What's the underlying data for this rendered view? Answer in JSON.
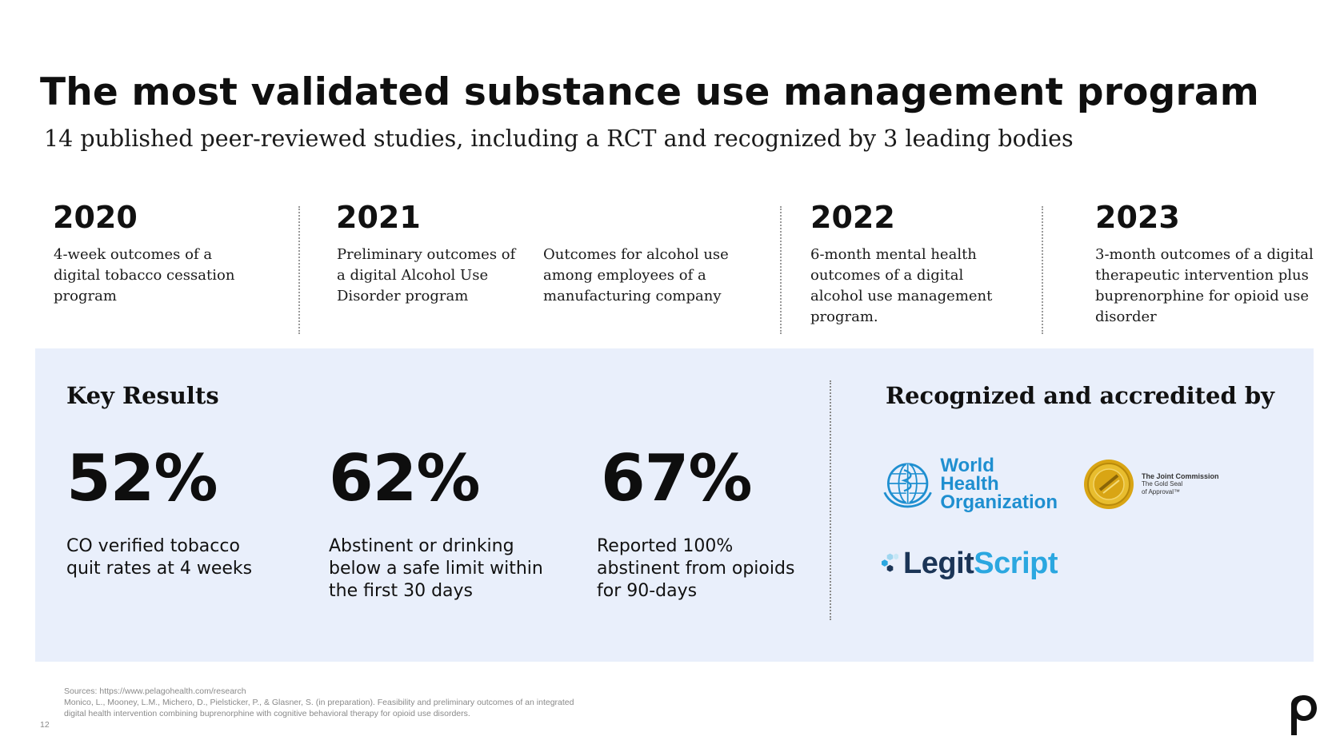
{
  "header": {
    "title": "The most validated substance use management program",
    "subtitle": "14 published peer-reviewed studies, including a RCT and recognized by 3 leading bodies"
  },
  "timeline": [
    {
      "year": "2020",
      "studies": [
        "4-week outcomes of a digital tobacco cessation program"
      ]
    },
    {
      "year": "2021",
      "studies": [
        "Preliminary outcomes of a digital Alcohol Use Disorder program",
        "Outcomes for alcohol use among employees of a manufacturing company"
      ]
    },
    {
      "year": "2022",
      "studies": [
        "6-month mental health outcomes of a digital alcohol use management program."
      ]
    },
    {
      "year": "2023",
      "studies": [
        "3-month outcomes of a digital therapeutic intervention plus buprenorphine for opioid use disorder"
      ]
    }
  ],
  "key_results": {
    "heading": "Key Results",
    "stats": [
      {
        "value": "52%",
        "label": "CO verified tobacco quit rates at 4 weeks"
      },
      {
        "value": "62%",
        "label": "Abstinent or drinking below a safe limit within the first 30 days"
      },
      {
        "value": "67%",
        "label": "Reported 100% abstinent from opioids for 90-days"
      }
    ]
  },
  "recognition": {
    "heading": "Recognized and accredited by",
    "who": {
      "line1": "World Health",
      "line2": "Organization"
    },
    "joint_commission": {
      "name": "The Joint Commission",
      "line2": "The Gold Seal",
      "line3": "of Approval™"
    },
    "legitscript": {
      "part1": "Legit",
      "part2": "Script"
    }
  },
  "footer": {
    "sources_label": "Sources: https://www.pelagohealth.com/research",
    "citation": "Monico, L., Mooney, L.M., Michero, D., Pielsticker, P., & Glasner, S. (in preparation). Feasibility and preliminary outcomes of an integrated digital health intervention combining buprenorphine with cognitive behavioral therapy for opioid use disorders.",
    "page_number": "12"
  },
  "colors": {
    "panel_bg": "#e9effb",
    "who_blue": "#1f8fd0",
    "legit_navy": "#1b3557",
    "legit_cyan": "#2ba7e0",
    "gold": "#d9a514"
  }
}
